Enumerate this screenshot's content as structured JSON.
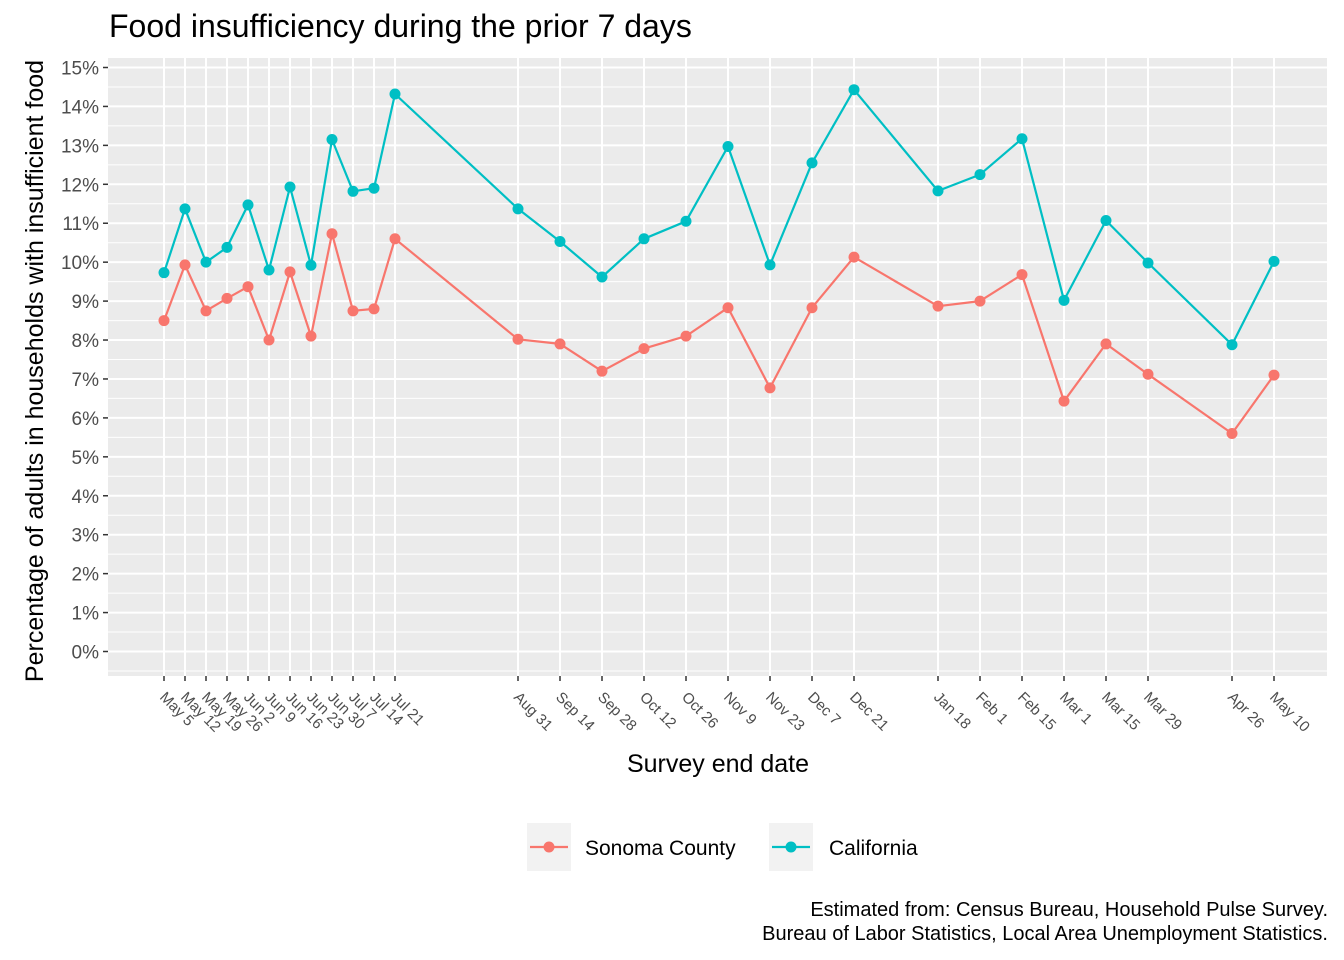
{
  "chart_data": {
    "type": "line",
    "title": "Food insufficiency during the prior 7 days",
    "xlabel": "Survey end date",
    "ylabel": "Percentage of adults in households with insufficient food",
    "y_ticks": [
      "0%",
      "1%",
      "2%",
      "3%",
      "4%",
      "5%",
      "6%",
      "7%",
      "8%",
      "9%",
      "10%",
      "11%",
      "12%",
      "13%",
      "14%",
      "15%"
    ],
    "ylim": [
      0,
      15
    ],
    "grid": true,
    "legend_position": "bottom",
    "x": [
      "2020-05-05",
      "2020-05-12",
      "2020-05-19",
      "2020-05-26",
      "2020-06-02",
      "2020-06-09",
      "2020-06-16",
      "2020-06-23",
      "2020-06-30",
      "2020-07-07",
      "2020-07-14",
      "2020-07-21",
      "2020-08-31",
      "2020-09-14",
      "2020-09-28",
      "2020-10-12",
      "2020-10-26",
      "2020-11-09",
      "2020-11-23",
      "2020-12-07",
      "2020-12-21",
      "2021-01-18",
      "2021-02-01",
      "2021-02-15",
      "2021-03-01",
      "2021-03-15",
      "2021-03-29",
      "2021-04-26",
      "2021-05-10"
    ],
    "x_tick_labels": [
      "May  5",
      "May 12",
      "May 19",
      "May 26",
      "Jun  2",
      "Jun  9",
      "Jun 16",
      "Jun 23",
      "Jun 30",
      "Jul  7",
      "Jul 14",
      "Jul 21",
      "Aug 31",
      "Sep 14",
      "Sep 28",
      "Oct 12",
      "Oct 26",
      "Nov  9",
      "Nov 23",
      "Dec  7",
      "Dec 21",
      "Jan 18",
      "Feb  1",
      "Feb 15",
      "Mar  1",
      "Mar 15",
      "Mar 29",
      "Apr 26",
      "May 10"
    ],
    "series": [
      {
        "name": "Sonoma County",
        "color": "#F8766D",
        "values": [
          8.5,
          9.93,
          8.75,
          9.07,
          9.37,
          8.0,
          9.75,
          8.1,
          10.73,
          8.75,
          8.8,
          10.6,
          8.02,
          7.9,
          7.2,
          7.78,
          8.1,
          8.83,
          6.77,
          8.83,
          10.13,
          8.87,
          9.0,
          9.68,
          6.43,
          7.9,
          7.12,
          5.6,
          7.1
        ]
      },
      {
        "name": "California",
        "color": "#00BFC4",
        "values": [
          9.73,
          11.37,
          10.0,
          10.38,
          11.47,
          9.8,
          11.93,
          9.92,
          13.15,
          11.82,
          11.9,
          14.32,
          11.37,
          10.53,
          9.62,
          10.6,
          11.05,
          12.97,
          9.93,
          12.55,
          14.43,
          11.83,
          12.25,
          13.17,
          9.02,
          11.07,
          9.98,
          7.88,
          10.02
        ]
      }
    ],
    "caption": [
      "Estimated from: Census Bureau, Household Pulse Survey.",
      "Bureau of Labor Statistics, Local Area Unemployment Statistics."
    ]
  }
}
